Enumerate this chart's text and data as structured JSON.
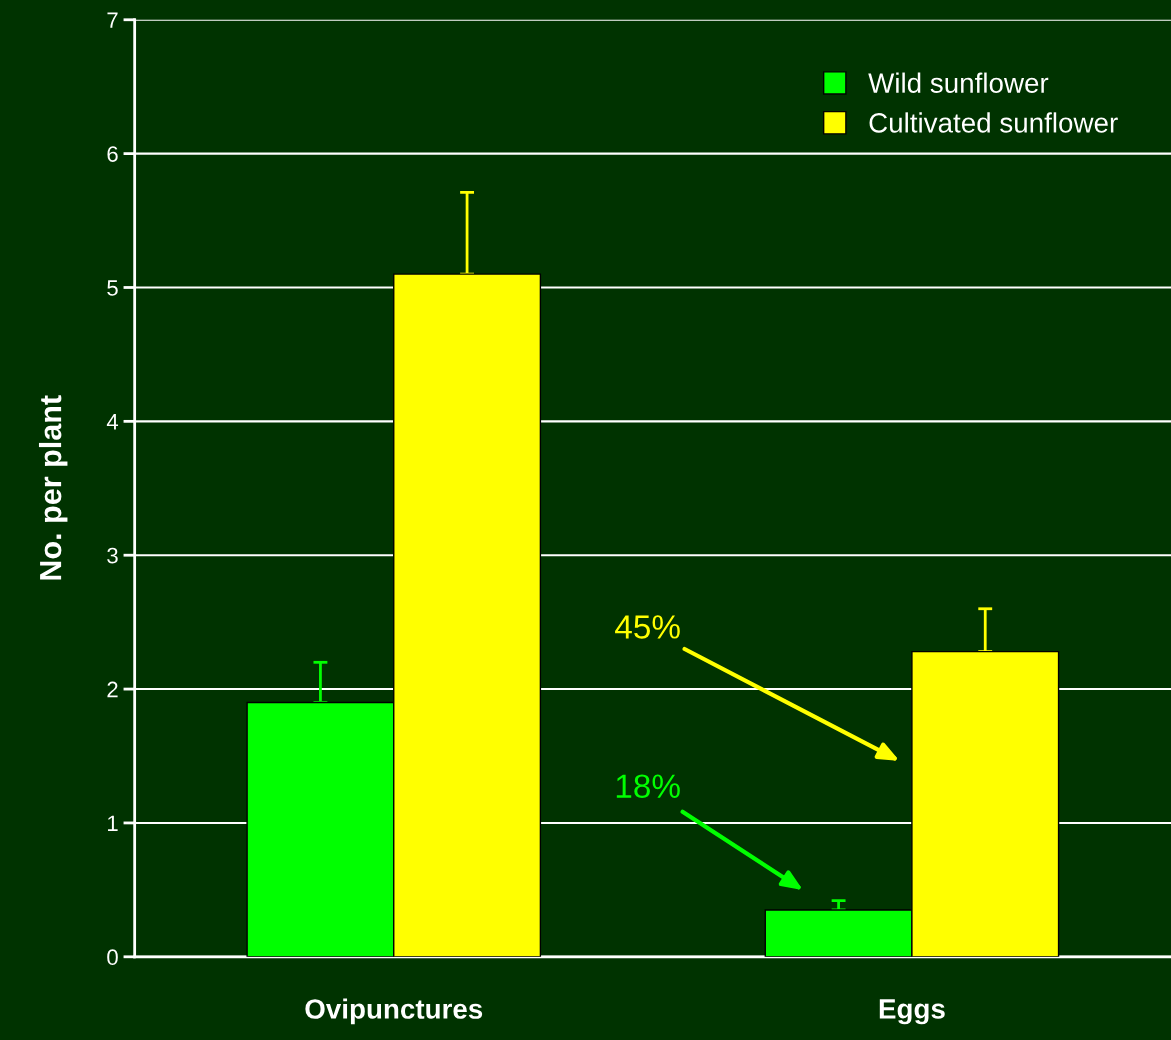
{
  "chart_data": {
    "type": "bar",
    "ylabel": "No. per plant",
    "categories": [
      "Ovipunctures",
      "Eggs"
    ],
    "series": [
      {
        "name": "Wild sunflower",
        "color": "#00ff00",
        "values": [
          1.9,
          0.35
        ],
        "errors": [
          [
            1.9,
            2.2
          ],
          [
            0.35,
            0.42
          ]
        ]
      },
      {
        "name": "Cultivated sunflower",
        "color": "#ffff00",
        "values": [
          5.1,
          2.28
        ],
        "errors": [
          [
            5.1,
            5.71
          ],
          [
            2.28,
            2.6
          ]
        ]
      }
    ],
    "annotations": [
      "45%",
      "18%"
    ],
    "ylim": [
      0,
      7
    ],
    "yticks": [
      0,
      1,
      2,
      3,
      4,
      5,
      6,
      7
    ],
    "grid": "y",
    "legend": "top right"
  }
}
